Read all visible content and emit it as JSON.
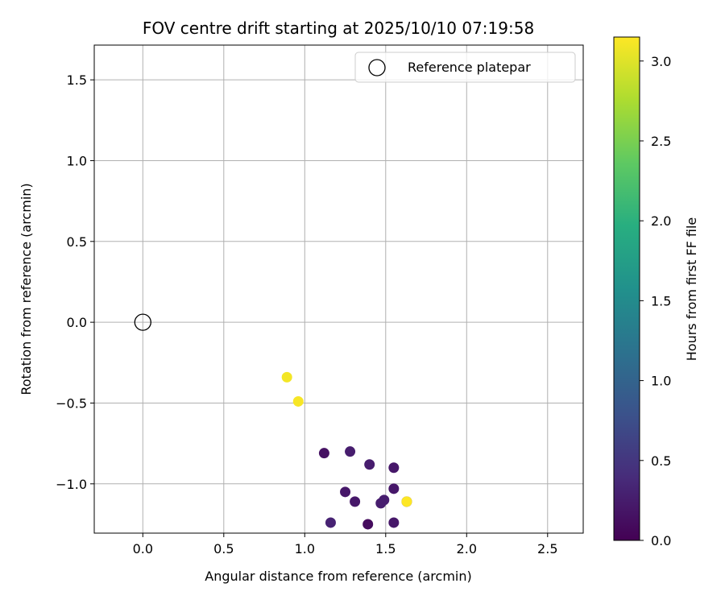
{
  "chart_data": {
    "type": "scatter",
    "title": "FOV centre drift starting at 2025/10/10 07:19:58",
    "xlabel": "Angular distance from reference (arcmin)",
    "ylabel": "Rotation from reference (arcmin)",
    "xlim": [
      -0.3,
      2.72
    ],
    "ylim": [
      -1.305,
      1.715
    ],
    "xticks": [
      0.0,
      0.5,
      1.0,
      1.5,
      2.0,
      2.5
    ],
    "xtick_labels": [
      "0.0",
      "0.5",
      "1.0",
      "1.5",
      "2.0",
      "2.5"
    ],
    "yticks": [
      -1.0,
      -0.5,
      0.0,
      0.5,
      1.0,
      1.5
    ],
    "ytick_labels": [
      "−1.0",
      "−0.5",
      "0.0",
      "0.5",
      "1.0",
      "1.5"
    ],
    "grid": true,
    "legend": {
      "placement": "top-right",
      "entries": [
        "Reference platepar"
      ]
    },
    "reference_point": {
      "name": "Reference platepar",
      "x": 0.0,
      "y": 0.0
    },
    "colorbar": {
      "label": "Hours from first FF file",
      "range": [
        0.0,
        3.15
      ],
      "ticks": [
        0.0,
        0.5,
        1.0,
        1.5,
        2.0,
        2.5,
        3.0
      ],
      "tick_labels": [
        "0.0",
        "0.5",
        "1.0",
        "1.5",
        "2.0",
        "2.5",
        "3.0"
      ],
      "colormap": "viridis"
    },
    "points": [
      {
        "x": 1.12,
        "y": -0.81,
        "hours": 0.15
      },
      {
        "x": 1.28,
        "y": -0.8,
        "hours": 0.25
      },
      {
        "x": 1.4,
        "y": -0.88,
        "hours": 0.25
      },
      {
        "x": 1.55,
        "y": -0.9,
        "hours": 0.2
      },
      {
        "x": 1.25,
        "y": -1.05,
        "hours": 0.2
      },
      {
        "x": 1.31,
        "y": -1.11,
        "hours": 0.2
      },
      {
        "x": 1.49,
        "y": -1.1,
        "hours": 0.25
      },
      {
        "x": 1.47,
        "y": -1.12,
        "hours": 0.25
      },
      {
        "x": 1.55,
        "y": -1.03,
        "hours": 0.2
      },
      {
        "x": 1.16,
        "y": -1.24,
        "hours": 0.3
      },
      {
        "x": 1.39,
        "y": -1.25,
        "hours": 0.1
      },
      {
        "x": 1.55,
        "y": -1.24,
        "hours": 0.2
      },
      {
        "x": 1.63,
        "y": -1.11,
        "hours": 0.25
      },
      {
        "x": 1.63,
        "y": -1.11,
        "hours": 3.15
      },
      {
        "x": 0.89,
        "y": -0.34,
        "hours": 3.1
      },
      {
        "x": 0.96,
        "y": -0.49,
        "hours": 3.12
      }
    ]
  }
}
